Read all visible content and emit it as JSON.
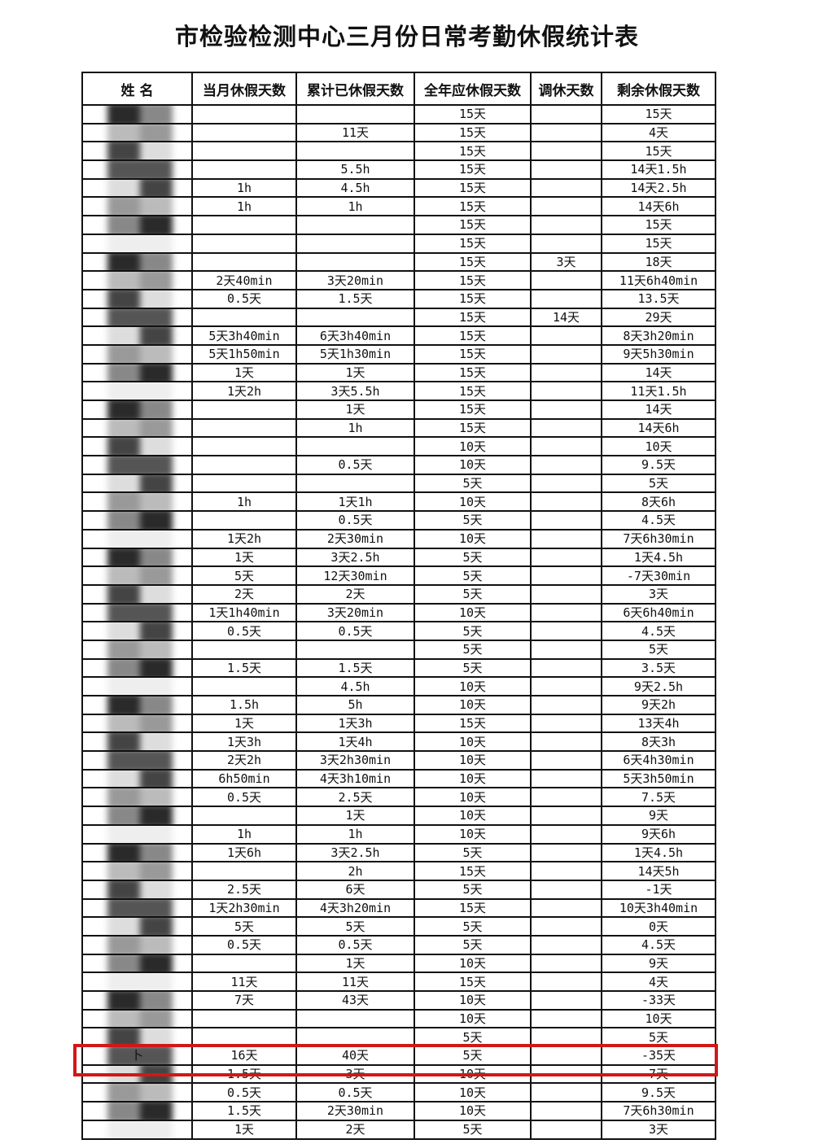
{
  "title": "市检验检测中心三月份日常考勤休假统计表",
  "headers": [
    "姓 名",
    "当月休假天数",
    "累计已休假天数",
    "全年应休假天数",
    "调休天数",
    "剩余休假天数"
  ],
  "highlight_color": "#d01818",
  "rows": [
    [
      "",
      "",
      "",
      "15天",
      "",
      "15天"
    ],
    [
      "",
      "",
      "11天",
      "15天",
      "",
      "4天"
    ],
    [
      "",
      "",
      "",
      "15天",
      "",
      "15天"
    ],
    [
      "",
      "",
      "5.5h",
      "15天",
      "",
      "14天1.5h"
    ],
    [
      "",
      "1h",
      "4.5h",
      "15天",
      "",
      "14天2.5h"
    ],
    [
      "",
      "1h",
      "1h",
      "15天",
      "",
      "14天6h"
    ],
    [
      "",
      "",
      "",
      "15天",
      "",
      "15天"
    ],
    [
      "",
      "",
      "",
      "15天",
      "",
      "15天"
    ],
    [
      "",
      "",
      "",
      "15天",
      "3天",
      "18天"
    ],
    [
      "",
      "2天40min",
      "3天20min",
      "15天",
      "",
      "11天6h40min"
    ],
    [
      "",
      "0.5天",
      "1.5天",
      "15天",
      "",
      "13.5天"
    ],
    [
      "",
      "",
      "",
      "15天",
      "14天",
      "29天"
    ],
    [
      "",
      "5天3h40min",
      "6天3h40min",
      "15天",
      "",
      "8天3h20min"
    ],
    [
      "",
      "5天1h50min",
      "5天1h30min",
      "15天",
      "",
      "9天5h30min"
    ],
    [
      "",
      "1天",
      "1天",
      "15天",
      "",
      "14天"
    ],
    [
      "",
      "1天2h",
      "3天5.5h",
      "15天",
      "",
      "11天1.5h"
    ],
    [
      "",
      "",
      "1天",
      "15天",
      "",
      "14天"
    ],
    [
      "",
      "",
      "1h",
      "15天",
      "",
      "14天6h"
    ],
    [
      "",
      "",
      "",
      "10天",
      "",
      "10天"
    ],
    [
      "",
      "",
      "0.5天",
      "10天",
      "",
      "9.5天"
    ],
    [
      "",
      "",
      "",
      "5天",
      "",
      "5天"
    ],
    [
      "",
      "1h",
      "1天1h",
      "10天",
      "",
      "8天6h"
    ],
    [
      "",
      "",
      "0.5天",
      "5天",
      "",
      "4.5天"
    ],
    [
      "",
      "1天2h",
      "2天30min",
      "10天",
      "",
      "7天6h30min"
    ],
    [
      "",
      "1天",
      "3天2.5h",
      "5天",
      "",
      "1天4.5h"
    ],
    [
      "",
      "5天",
      "12天30min",
      "5天",
      "",
      "-7天30min"
    ],
    [
      "",
      "2天",
      "2天",
      "5天",
      "",
      "3天"
    ],
    [
      "",
      "1天1h40min",
      "3天20min",
      "10天",
      "",
      "6天6h40min"
    ],
    [
      "",
      "0.5天",
      "0.5天",
      "5天",
      "",
      "4.5天"
    ],
    [
      "",
      "",
      "",
      "5天",
      "",
      "5天"
    ],
    [
      "",
      "1.5天",
      "1.5天",
      "5天",
      "",
      "3.5天"
    ],
    [
      "",
      "",
      "4.5h",
      "10天",
      "",
      "9天2.5h"
    ],
    [
      "",
      "1.5h",
      "5h",
      "10天",
      "",
      "9天2h"
    ],
    [
      "",
      "1天",
      "1天3h",
      "15天",
      "",
      "13天4h"
    ],
    [
      "",
      "1天3h",
      "1天4h",
      "10天",
      "",
      "8天3h"
    ],
    [
      "",
      "2天2h",
      "3天2h30min",
      "10天",
      "",
      "6天4h30min"
    ],
    [
      "",
      "6h50min",
      "4天3h10min",
      "10天",
      "",
      "5天3h50min"
    ],
    [
      "",
      "0.5天",
      "2.5天",
      "10天",
      "",
      "7.5天"
    ],
    [
      "",
      "",
      "1天",
      "10天",
      "",
      "9天"
    ],
    [
      "",
      "1h",
      "1h",
      "10天",
      "",
      "9天6h"
    ],
    [
      "",
      "1天6h",
      "3天2.5h",
      "5天",
      "",
      "1天4.5h"
    ],
    [
      "",
      "",
      "2h",
      "15天",
      "",
      "14天5h"
    ],
    [
      "",
      "2.5天",
      "6天",
      "5天",
      "",
      "-1天"
    ],
    [
      "",
      "1天2h30min",
      "4天3h20min",
      "15天",
      "",
      "10天3h40min"
    ],
    [
      "",
      "5天",
      "5天",
      "5天",
      "",
      "0天"
    ],
    [
      "",
      "0.5天",
      "0.5天",
      "5天",
      "",
      "4.5天"
    ],
    [
      "",
      "",
      "1天",
      "10天",
      "",
      "9天"
    ],
    [
      "",
      "11天",
      "11天",
      "15天",
      "",
      "4天"
    ],
    [
      "",
      "7天",
      "43天",
      "10天",
      "",
      "-33天"
    ],
    [
      "",
      "",
      "",
      "10天",
      "",
      "10天"
    ],
    [
      "",
      "",
      "",
      "5天",
      "",
      "5天"
    ],
    [
      "卜",
      "16天",
      "40天",
      "5天",
      "",
      "-35天"
    ],
    [
      "",
      "1.5天",
      "3天",
      "10天",
      "",
      "7天"
    ],
    [
      "",
      "0.5天",
      "0.5天",
      "10天",
      "",
      "9.5天"
    ],
    [
      "",
      "1.5天",
      "2天30min",
      "10天",
      "",
      "7天6h30min"
    ],
    [
      "",
      "1天",
      "2天",
      "5天",
      "",
      "3天"
    ]
  ]
}
